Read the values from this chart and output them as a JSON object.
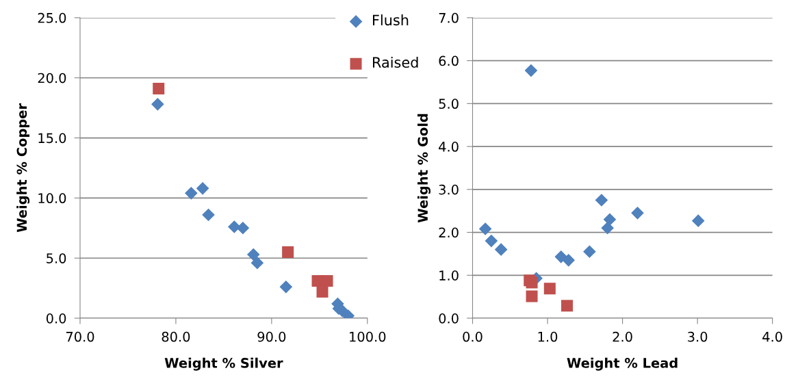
{
  "chart_data": [
    {
      "type": "scatter",
      "xlabel": "Weight % Silver",
      "ylabel": "Weight % Copper",
      "legend": "top right",
      "grid": "y",
      "xlim": [
        70,
        100
      ],
      "xticks": [
        {
          "value": 70,
          "label": "70.0"
        },
        {
          "value": 80,
          "label": "80.0"
        },
        {
          "value": 90,
          "label": "90.0"
        },
        {
          "value": 100,
          "label": "100.0"
        }
      ],
      "ylim": [
        0,
        25
      ],
      "yticks": [
        {
          "value": 0,
          "label": "0.0"
        },
        {
          "value": 5,
          "label": "5.0"
        },
        {
          "value": 10,
          "label": "10.0"
        },
        {
          "value": 15,
          "label": "15.0"
        },
        {
          "value": 20,
          "label": "20.0"
        },
        {
          "value": 25,
          "label": "25.0"
        }
      ],
      "series": [
        {
          "name": "Flush",
          "color": "#4f81bd",
          "marker": "diamond",
          "x": [
            78.1,
            81.6,
            82.8,
            83.4,
            86.1,
            87.0,
            88.1,
            88.5,
            91.5,
            96.9,
            97.0,
            97.4,
            98.0
          ],
          "values": [
            17.8,
            10.4,
            10.8,
            8.6,
            7.6,
            7.5,
            5.3,
            4.6,
            2.6,
            1.2,
            0.8,
            0.6,
            0.2
          ]
        },
        {
          "name": "Raised",
          "color": "#c0504d",
          "marker": "square",
          "x": [
            78.2,
            91.7,
            94.8,
            95.8,
            95.3
          ],
          "values": [
            19.1,
            5.5,
            3.1,
            3.1,
            2.2
          ]
        }
      ]
    },
    {
      "type": "scatter",
      "xlabel": "Weight % Lead",
      "ylabel": "Weight % Gold",
      "legend": false,
      "grid": "y",
      "xlim": [
        0,
        4
      ],
      "xticks": [
        {
          "value": 0,
          "label": "0.0"
        },
        {
          "value": 1,
          "label": "1.0"
        },
        {
          "value": 2,
          "label": "2.0"
        },
        {
          "value": 3,
          "label": "3.0"
        },
        {
          "value": 4,
          "label": "4.0"
        }
      ],
      "ylim": [
        0,
        7
      ],
      "yticks": [
        {
          "value": 0,
          "label": "0.0"
        },
        {
          "value": 1,
          "label": "1.0"
        },
        {
          "value": 2,
          "label": "2.0"
        },
        {
          "value": 3,
          "label": "3.0"
        },
        {
          "value": 4,
          "label": "4.0"
        },
        {
          "value": 5,
          "label": "5.0"
        },
        {
          "value": 6,
          "label": "6.0"
        },
        {
          "value": 7,
          "label": "7.0"
        }
      ],
      "series": [
        {
          "color": "#4f81bd",
          "marker": "diamond",
          "x": [
            0.17,
            0.25,
            0.38,
            0.78,
            0.85,
            1.18,
            1.28,
            1.56,
            1.72,
            1.8,
            1.83,
            2.2,
            3.01
          ],
          "values": [
            2.08,
            1.8,
            1.6,
            5.77,
            0.93,
            1.43,
            1.35,
            1.55,
            2.75,
            2.1,
            2.3,
            2.45,
            2.27
          ]
        },
        {
          "color": "#c0504d",
          "marker": "square",
          "x": [
            0.76,
            0.79,
            0.79,
            1.03,
            1.26
          ],
          "values": [
            0.88,
            0.83,
            0.51,
            0.69,
            0.29
          ]
        }
      ]
    }
  ]
}
